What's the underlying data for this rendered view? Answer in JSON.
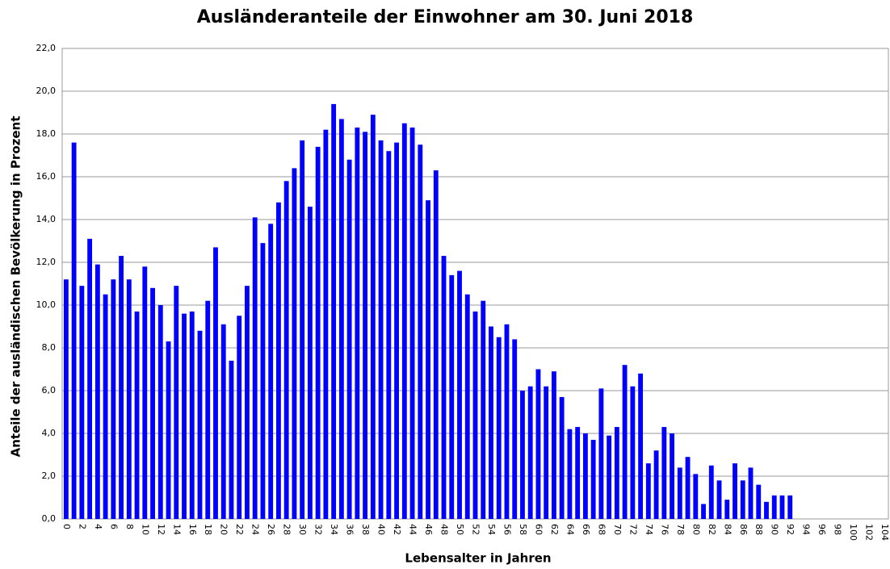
{
  "chart_data": {
    "type": "bar",
    "title": "Ausländeranteile der Einwohner am 30. Juni 2018",
    "x_label": "Lebensalter in Jahren",
    "y_label": "Anteile der ausländischen Bevölkerung in Prozent",
    "color": "#0000ff",
    "grid": true,
    "categories": [
      "0",
      null,
      "2",
      null,
      "4",
      null,
      "6",
      null,
      "8",
      null,
      "10",
      null,
      "12",
      null,
      "14",
      null,
      "16",
      null,
      "18",
      null,
      "20",
      null,
      "22",
      null,
      "24",
      null,
      "26",
      null,
      "28",
      null,
      "30",
      null,
      "32",
      null,
      "34",
      null,
      "36",
      null,
      "38",
      null,
      "40",
      null,
      "42",
      null,
      "44",
      null,
      "46",
      null,
      "48",
      null,
      "50",
      null,
      "52",
      null,
      "54",
      null,
      "56",
      null,
      "58",
      null,
      "60",
      null,
      "62",
      null,
      "64",
      null,
      "66",
      null,
      "68",
      null,
      "70",
      null,
      "72",
      null,
      "74",
      null,
      "76",
      null,
      "78",
      null,
      "80",
      null,
      "82",
      null,
      "84",
      null,
      "86",
      null,
      "88",
      null,
      "90",
      null,
      "92",
      null,
      "94",
      null,
      "96",
      null,
      "98",
      null,
      "100",
      null,
      "102",
      null,
      "104"
    ],
    "values": [
      11.2,
      17.6,
      10.9,
      13.1,
      11.9,
      10.5,
      11.2,
      12.3,
      11.2,
      9.7,
      11.8,
      10.8,
      10.0,
      8.3,
      10.9,
      9.6,
      9.7,
      8.8,
      10.2,
      12.7,
      9.1,
      7.4,
      9.5,
      10.9,
      14.1,
      12.9,
      13.8,
      14.8,
      15.8,
      16.4,
      17.7,
      14.6,
      17.4,
      18.2,
      19.4,
      18.7,
      16.8,
      18.3,
      18.1,
      18.9,
      17.7,
      17.2,
      17.6,
      18.5,
      18.3,
      17.5,
      14.9,
      16.3,
      12.3,
      11.4,
      11.6,
      10.5,
      9.7,
      10.2,
      9.0,
      8.5,
      9.1,
      8.4,
      6.0,
      6.2,
      7.0,
      6.2,
      6.9,
      5.7,
      4.2,
      4.3,
      4.0,
      3.7,
      6.1,
      3.9,
      4.3,
      7.2,
      6.2,
      6.8,
      2.6,
      3.2,
      4.3,
      4.0,
      2.4,
      2.9,
      2.1,
      0.7,
      2.5,
      1.8,
      0.9,
      2.6,
      1.8,
      2.4,
      1.6,
      0.8,
      1.1,
      1.1,
      1.1,
      0,
      0,
      0,
      0,
      0,
      0,
      0,
      0,
      0,
      0,
      0,
      0
    ],
    "ylim": [
      0,
      22
    ],
    "yticks": [
      {
        "value": 0,
        "label": "0,0"
      },
      {
        "value": 2,
        "label": "2,0"
      },
      {
        "value": 4,
        "label": "4,0"
      },
      {
        "value": 6,
        "label": "6,0"
      },
      {
        "value": 8,
        "label": "8,0"
      },
      {
        "value": 10,
        "label": "10,0"
      },
      {
        "value": 12,
        "label": "12,0"
      },
      {
        "value": 14,
        "label": "14,0"
      },
      {
        "value": 16,
        "label": "16,0"
      },
      {
        "value": 18,
        "label": "18,0"
      },
      {
        "value": 20,
        "label": "20,0"
      },
      {
        "value": 22,
        "label": "22,0"
      }
    ]
  }
}
